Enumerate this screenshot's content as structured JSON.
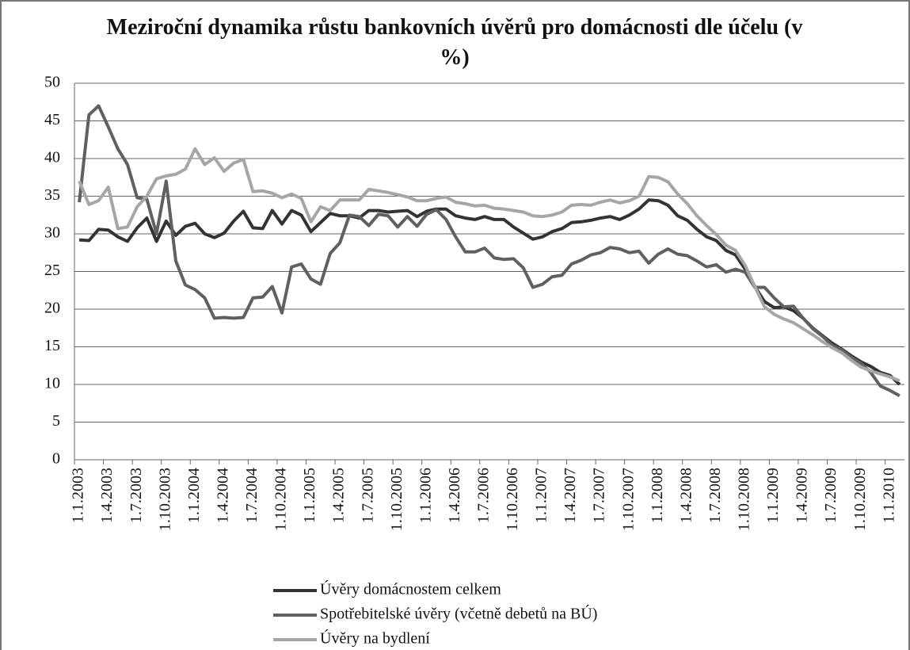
{
  "chart_data": {
    "type": "line",
    "title": "Meziroční dynamika růstu bankovních úvěrů pro domácnosti dle účelu (v %)",
    "categories": [
      "1.1.2003",
      null,
      null,
      "1.4.2003",
      null,
      null,
      "1.7.2003",
      null,
      null,
      "1.10.2003",
      null,
      null,
      "1.1.2004",
      null,
      null,
      "1.4.2004",
      null,
      null,
      "1.7.2004",
      null,
      null,
      "1.10.2004",
      null,
      null,
      "1.1.2005",
      null,
      null,
      "1.4.2005",
      null,
      null,
      "1.7.2005",
      null,
      null,
      "1.10.2005",
      null,
      null,
      "1.1.2006",
      null,
      null,
      "1.4.2006",
      null,
      null,
      "1.7.2006",
      null,
      null,
      "1.10.2006",
      null,
      null,
      "1.1.2007",
      null,
      null,
      "1.4.2007",
      null,
      null,
      "1.7.2007",
      null,
      null,
      "1.10.2007",
      null,
      null,
      "1.1.2008",
      null,
      null,
      "1.4.2008",
      null,
      null,
      "1.7.2008",
      null,
      null,
      "1.10.2008",
      null,
      null,
      "1.1.2009",
      null,
      null,
      "1.4.2009",
      null,
      null,
      "1.7.2009",
      null,
      null,
      "1.10.2009",
      null,
      null,
      "1.1.2010",
      null
    ],
    "series": [
      {
        "name": "Úvěry domácnostem celkem",
        "color": "#333333",
        "values": [
          29.2,
          29.1,
          30.6,
          30.5,
          29.6,
          29.0,
          30.8,
          32.1,
          29.0,
          31.7,
          29.8,
          31.0,
          31.4,
          30.0,
          29.5,
          30.1,
          31.7,
          33.0,
          30.8,
          30.7,
          33.1,
          31.3,
          33.1,
          32.5,
          30.3,
          31.5,
          32.7,
          32.4,
          32.4,
          32.1,
          33.1,
          33.1,
          32.9,
          33.0,
          33.1,
          32.3,
          33.0,
          33.3,
          33.3,
          32.4,
          32.1,
          31.9,
          32.3,
          31.9,
          31.9,
          30.9,
          30.1,
          29.3,
          29.6,
          30.3,
          30.7,
          31.5,
          31.6,
          31.8,
          32.1,
          32.3,
          31.9,
          32.5,
          33.3,
          34.5,
          34.4,
          33.8,
          32.4,
          31.8,
          30.6,
          29.6,
          29.1,
          27.8,
          27.2,
          25.3,
          23.0,
          21.0,
          20.2,
          20.3,
          19.8,
          18.8,
          17.5,
          16.5,
          15.5,
          14.7,
          13.8,
          13.0,
          12.4,
          11.6,
          11.2,
          10.0
        ]
      },
      {
        "name": "Spotřebitelské úvěry (včetně debetů na BÚ)",
        "color": "#606060",
        "values": [
          34.2,
          45.8,
          47.0,
          44.2,
          41.3,
          39.2,
          34.8,
          34.6,
          30.0,
          37.0,
          26.4,
          23.2,
          22.6,
          21.5,
          18.8,
          18.9,
          18.8,
          18.9,
          21.5,
          21.6,
          23.0,
          19.5,
          25.6,
          26.0,
          24.0,
          23.3,
          27.4,
          28.8,
          32.5,
          32.3,
          31.1,
          32.6,
          32.4,
          30.9,
          32.3,
          31.0,
          32.6,
          33.2,
          31.9,
          29.6,
          27.6,
          27.6,
          28.1,
          26.8,
          26.6,
          26.7,
          25.5,
          22.9,
          23.3,
          24.3,
          24.5,
          26.0,
          26.5,
          27.2,
          27.5,
          28.2,
          28.0,
          27.5,
          27.7,
          26.1,
          27.3,
          28.0,
          27.3,
          27.1,
          26.4,
          25.6,
          25.9,
          24.9,
          25.3,
          24.9,
          22.9,
          22.9,
          21.5,
          20.3,
          20.4,
          18.8,
          17.4,
          16.4,
          15.2,
          14.6,
          13.6,
          12.8,
          11.6,
          9.8,
          9.2,
          8.5
        ]
      },
      {
        "name": "Úvěry na bydlení",
        "color": "#a6a6a6",
        "values": [
          37.0,
          33.9,
          34.4,
          36.2,
          30.7,
          30.9,
          33.6,
          35.0,
          37.3,
          37.7,
          37.9,
          38.6,
          41.3,
          39.2,
          40.1,
          38.3,
          39.4,
          39.9,
          35.6,
          35.7,
          35.4,
          34.8,
          35.3,
          34.7,
          31.6,
          33.6,
          33.1,
          34.5,
          34.5,
          34.5,
          35.9,
          35.7,
          35.5,
          35.2,
          34.9,
          34.4,
          34.4,
          34.7,
          34.9,
          34.2,
          34.0,
          33.7,
          33.8,
          33.4,
          33.3,
          33.1,
          32.9,
          32.4,
          32.3,
          32.5,
          32.9,
          33.8,
          33.9,
          33.8,
          34.2,
          34.5,
          34.1,
          34.4,
          35.0,
          37.6,
          37.5,
          36.9,
          35.3,
          34.0,
          32.4,
          31.1,
          29.9,
          28.5,
          27.8,
          25.8,
          23.0,
          20.3,
          19.3,
          18.7,
          18.2,
          17.4,
          16.6,
          15.7,
          14.9,
          14.2,
          13.2,
          12.3,
          11.8,
          11.4,
          11.0,
          10.5
        ]
      }
    ],
    "ylim": [
      0,
      50
    ],
    "yticks": [
      0,
      5,
      10,
      15,
      20,
      25,
      30,
      35,
      40,
      45,
      50
    ],
    "grid": true
  }
}
